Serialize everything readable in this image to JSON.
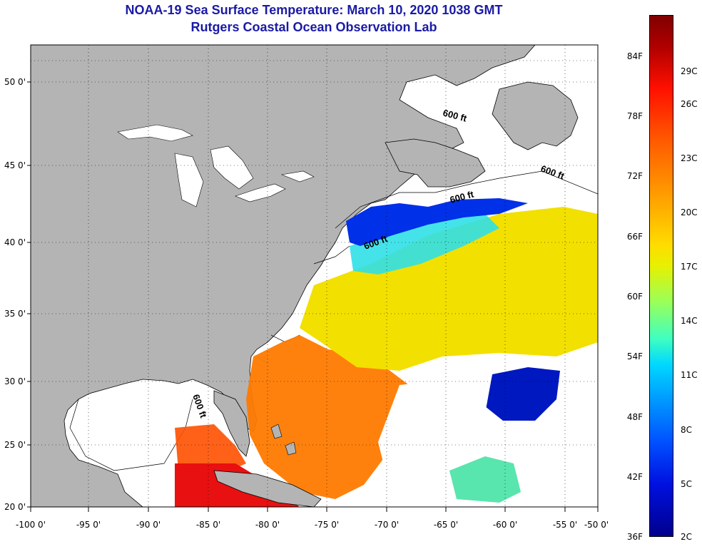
{
  "title_line1": "NOAA-19 Sea Surface Temperature:  March 10, 2020 1038 GMT",
  "title_line2": "Rutgers Coastal Ocean Observation Lab",
  "lat_labels": [
    "50 0'",
    "45 0'",
    "40 0'",
    "35 0'",
    "30 0'",
    "25 0'",
    "20 0'"
  ],
  "lon_labels": [
    "-100 0'",
    "-95 0'",
    "-90 0'",
    "-85 0'",
    "-80 0'",
    "-75 0'",
    "-70 0'",
    "-65 0'",
    "-60 0'",
    "-55 0'",
    "-50 0'"
  ],
  "depth_contour_labels": [
    "600 ft",
    "600 ft",
    "600 ft",
    "600 ft",
    "600 ft"
  ],
  "colorbar": {
    "fahrenheit": [
      "84F",
      "78F",
      "72F",
      "66F",
      "60F",
      "54F",
      "48F",
      "42F",
      "36F"
    ],
    "celsius": [
      "29C",
      "26C",
      "23C",
      "20C",
      "17C",
      "14C",
      "11C",
      "8C",
      "5C",
      "2C"
    ]
  },
  "colors": {
    "land": "#b4b4b4",
    "title": "#1a1aa6",
    "no_data": "#ffffff"
  }
}
